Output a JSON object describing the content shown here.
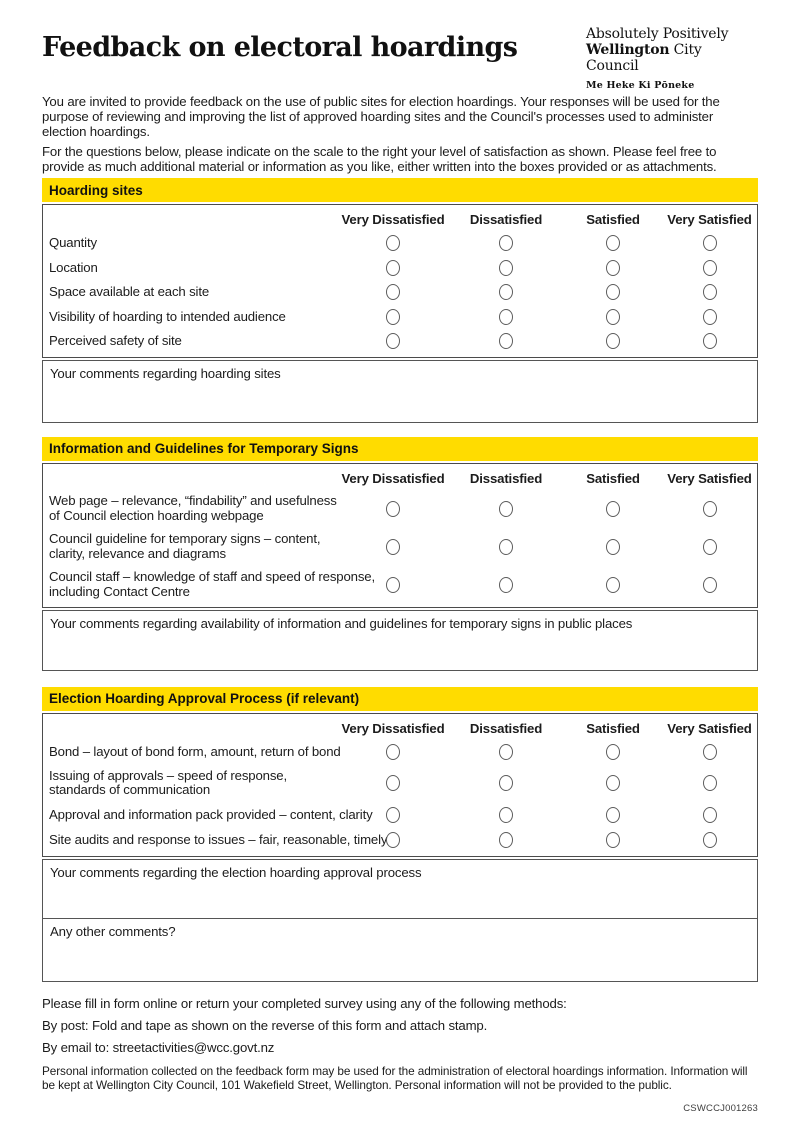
{
  "header": {
    "title": "Feedback on electoral hoardings",
    "logo": {
      "line1": "Absolutely Positively",
      "brand_bold": "Wellington",
      "brand_rest": " City Council",
      "maori": "Me Heke Ki Pōneke"
    }
  },
  "intro": {
    "para1": "You are invited to provide feedback on the use of public sites for election hoardings. Your responses will be used for the purpose of reviewing and improving the list of approved hoarding sites and the Council's processes used to administer election hoardings.",
    "para2": "For the questions below, please indicate on the scale to the right your level of satisfaction as shown. Please feel free to provide as much additional material or information as you like, either written into the boxes provided or as attachments."
  },
  "scale": [
    "Very Dissatisfied",
    "Dissatisfied",
    "Satisfied",
    "Very Satisfied"
  ],
  "sections": [
    {
      "title": "Hoarding sites",
      "rows": [
        "Quantity",
        "Location",
        "Space available at each site",
        "Visibility of hoarding to intended audience",
        "Perceived safety of site"
      ],
      "comment": "Your comments regarding hoarding sites"
    },
    {
      "title": "Information and Guidelines for Temporary Signs",
      "rows": [
        "Web page – relevance, “findability” and usefulness\nof Council election hoarding webpage",
        "Council guideline for temporary signs – content,\nclarity, relevance and diagrams",
        "Council staff – knowledge of staff and speed of response,\nincluding Contact Centre"
      ],
      "comment": "Your comments regarding availability of information and guidelines for temporary signs in public places"
    },
    {
      "title": "Election Hoarding Approval Process (if relevant)",
      "rows": [
        "Bond – layout of bond form, amount, return of bond",
        "Issuing of approvals – speed of response,\nstandards of communication",
        "Approval and information pack provided – content, clarity",
        "Site audits and response to issues – fair, reasonable, timely?"
      ],
      "comment": "Your comments regarding the election hoarding approval process",
      "comment2": "Any other comments?"
    }
  ],
  "footer": {
    "line1": "Please fill in form online or return your completed survey using any of the following methods:",
    "line2": "By post: Fold and tape as shown on the reverse of this form and attach stamp.",
    "line3_prefix": "By email to: ",
    "email": "streetactivities@wcc.govt.nz",
    "privacy": "Personal information collected on the feedback form may be used for the administration of electoral hoardings information. Information will be kept at Wellington City Council, 101 Wakefield Street, Wellington. Personal information will not be provided to the public.",
    "code": "CSWCCJ001263"
  }
}
